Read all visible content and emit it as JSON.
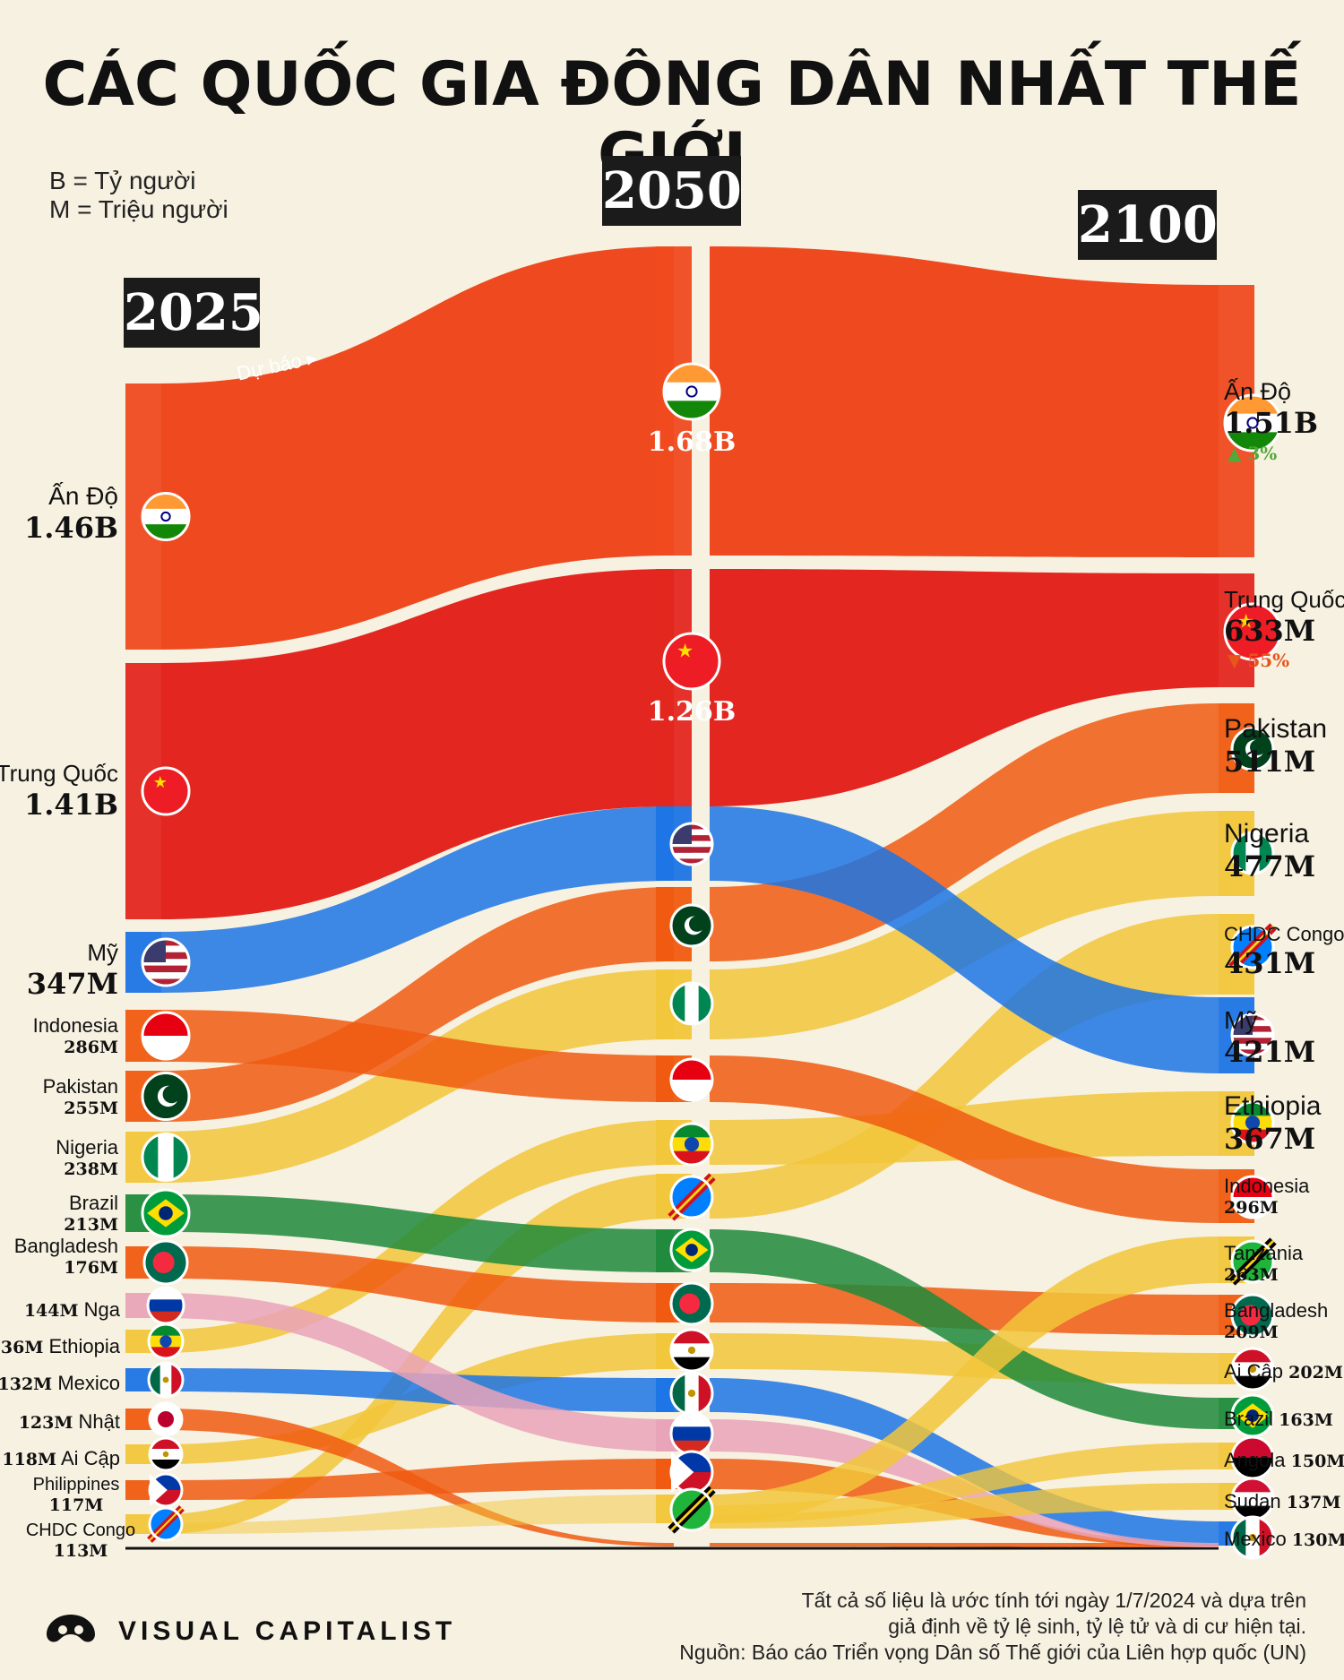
{
  "title": "CÁC QUỐC GIA ĐÔNG DÂN NHẤT THẾ GIỚI",
  "legend": [
    "B = Tỷ người",
    "M = Triệu người"
  ],
  "forecast_label": "Dự báo",
  "notes": [
    "Tất cả số liệu là ước tính tới ngày 1/7/2024 và dựa trên",
    "giả định về tỷ lệ sinh, tỷ lệ tử và di cư hiện tại.",
    "Nguồn: Báo cáo Triển vọng Dân số Thế giới của Liên hợp quốc (UN)"
  ],
  "brand": "VISUAL CAPITALIST",
  "colors": {
    "background": "#f7f1e1",
    "india": "#ef4a1f",
    "china": "#e3261f",
    "usa": "#1c74e5",
    "orange": "#f05a10",
    "yellow": "#f2c63a",
    "green": "#1f8a3b",
    "pink": "#e9a3b8",
    "up": "#52a83a",
    "down": "#e8541b"
  },
  "chart_data": {
    "type": "sankey",
    "title": "CÁC QUỐC GIA ĐÔNG DÂN NHẤT THẾ GIỚI",
    "unit_note": "B = Tỷ người, M = Triệu người",
    "years": [
      "2025",
      "2050",
      "2100"
    ],
    "years_labels": {
      "y2025": "2025",
      "y2050": "2050",
      "y2100": "2100"
    },
    "y2025": [
      {
        "country": "Ấn Độ",
        "value_label": "1.46B",
        "value": 1460
      },
      {
        "country": "Trung Quốc",
        "value_label": "1.41B",
        "value": 1410
      },
      {
        "country": "Mỹ",
        "value_label": "347M",
        "value": 347
      },
      {
        "country": "Indonesia",
        "value_label": "286M",
        "value": 286
      },
      {
        "country": "Pakistan",
        "value_label": "255M",
        "value": 255
      },
      {
        "country": "Nigeria",
        "value_label": "238M",
        "value": 238
      },
      {
        "country": "Brazil",
        "value_label": "213M",
        "value": 213
      },
      {
        "country": "Bangladesh",
        "value_label": "176M",
        "value": 176
      },
      {
        "country": "Nga",
        "value_label": "144M",
        "value": 144
      },
      {
        "country": "Ethiopia",
        "value_label": "136M",
        "value": 136
      },
      {
        "country": "Mexico",
        "value_label": "132M",
        "value": 132
      },
      {
        "country": "Nhật",
        "value_label": "123M",
        "value": 123
      },
      {
        "country": "Ai Cập",
        "value_label": "118M",
        "value": 118
      },
      {
        "country": "Philippines",
        "value_label": "117M",
        "value": 117
      },
      {
        "country": "CHDC Congo",
        "value_label": "113M",
        "value": 113
      }
    ],
    "y2050": [
      {
        "country": "Ấn Độ",
        "value_label": "1.68B",
        "value": 1680
      },
      {
        "country": "Trung Quốc",
        "value_label": "1.26B",
        "value": 1260
      },
      {
        "country": "Mỹ"
      },
      {
        "country": "Pakistan"
      },
      {
        "country": "Nigeria"
      },
      {
        "country": "Indonesia"
      },
      {
        "country": "Ethiopia"
      },
      {
        "country": "CHDC Congo"
      },
      {
        "country": "Brazil"
      },
      {
        "country": "Bangladesh"
      },
      {
        "country": "Ai Cập"
      },
      {
        "country": "Mexico"
      },
      {
        "country": "Nga"
      },
      {
        "country": "Philippines"
      },
      {
        "country": "Tanzania"
      }
    ],
    "y2100": [
      {
        "country": "Ấn Độ",
        "value_label": "1.51B",
        "value": 1510,
        "change": "3%",
        "direction": "up"
      },
      {
        "country": "Trung Quốc",
        "value_label": "633M",
        "value": 633,
        "change": "55%",
        "direction": "down"
      },
      {
        "country": "Pakistan",
        "value_label": "511M",
        "value": 511
      },
      {
        "country": "Nigeria",
        "value_label": "477M",
        "value": 477
      },
      {
        "country": "CHDC Congo",
        "value_label": "431M",
        "value": 431
      },
      {
        "country": "Mỹ",
        "value_label": "421M",
        "value": 421
      },
      {
        "country": "Ethiopia",
        "value_label": "367M",
        "value": 367
      },
      {
        "country": "Indonesia",
        "value_label": "296M",
        "value": 296
      },
      {
        "country": "Tanzania",
        "value_label": "263M",
        "value": 263
      },
      {
        "country": "Bangladesh",
        "value_label": "209M",
        "value": 209
      },
      {
        "country": "Ai Cập",
        "value_label": "202M",
        "value": 202
      },
      {
        "country": "Brazil",
        "value_label": "163M",
        "value": 163
      },
      {
        "country": "Angola",
        "value_label": "150M",
        "value": 150
      },
      {
        "country": "Sudan",
        "value_label": "137M",
        "value": 137
      },
      {
        "country": "Mexico",
        "value_label": "130M",
        "value": 130
      }
    ]
  }
}
